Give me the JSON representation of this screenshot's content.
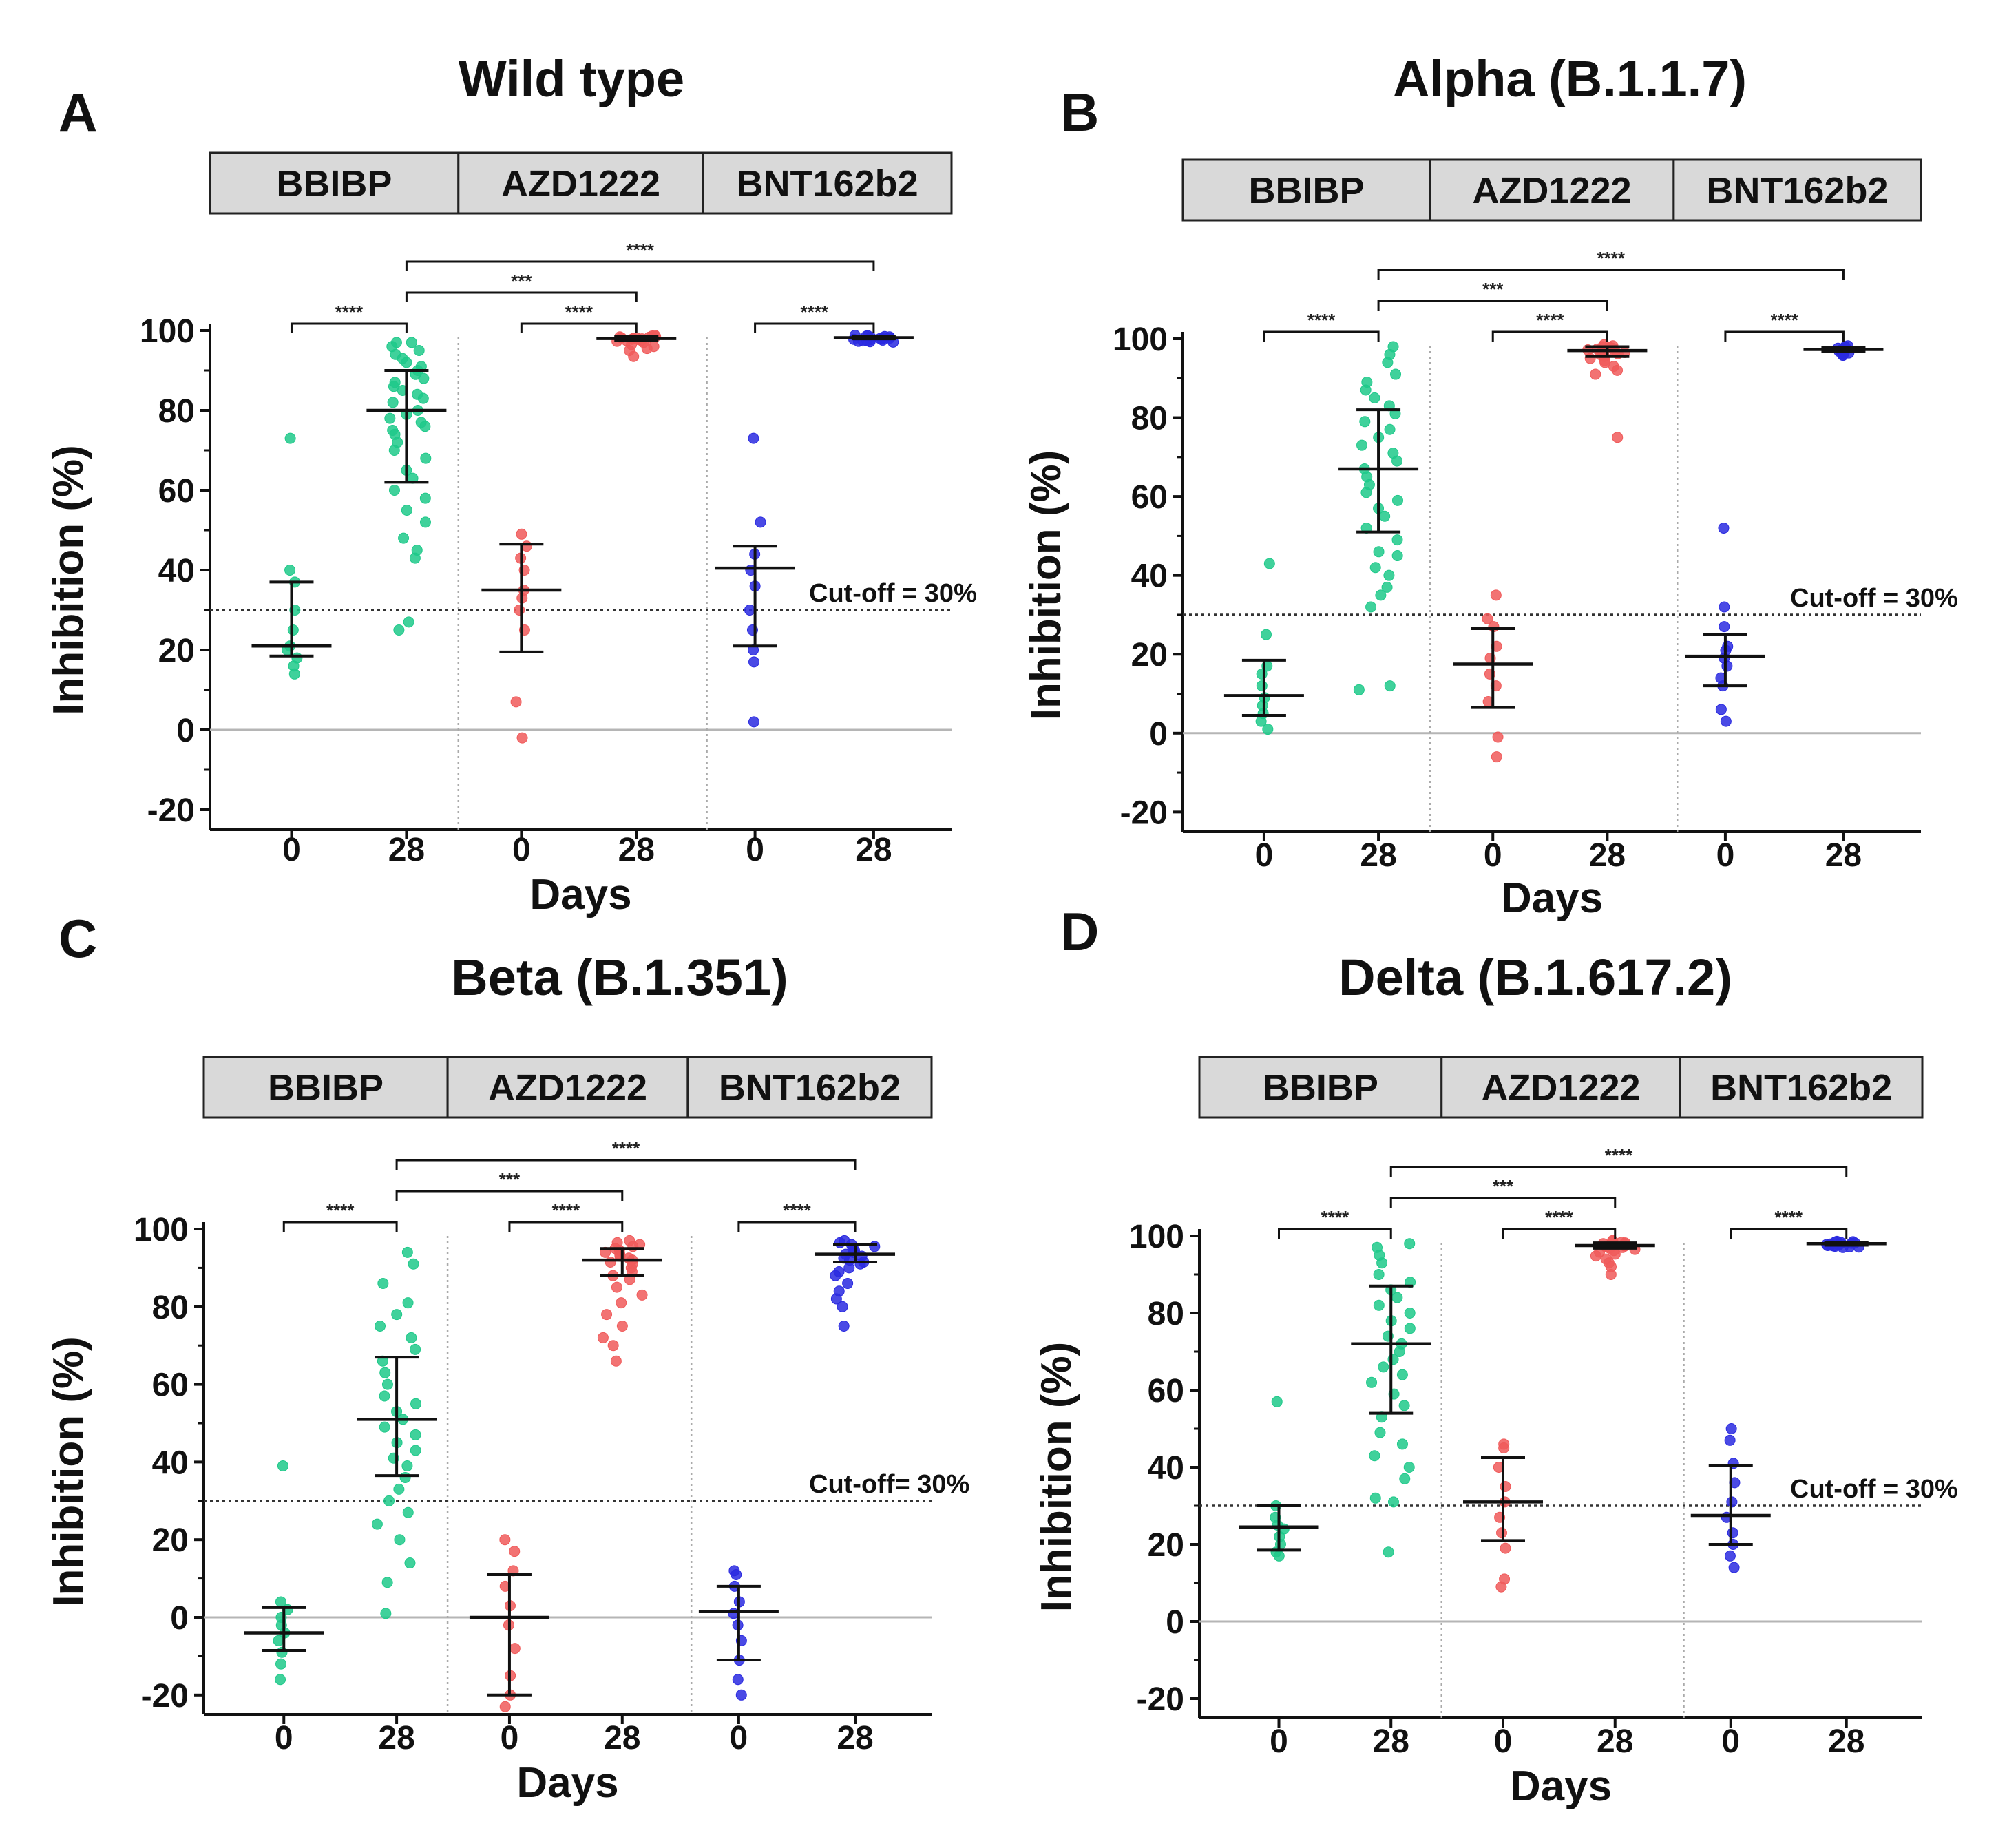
{
  "figure": {
    "x_axis_title": "Days",
    "y_axis_title": "Inhibition (%)",
    "vaccines": [
      "BBIBP",
      "AZD1222",
      "BNT162b2"
    ]
  },
  "colors": {
    "BBIBP": "#1fc98a",
    "AZD1222": "#f05a5a",
    "BNT162b2": "#2a2ae0"
  },
  "chart_data": [
    {
      "type": "scatter",
      "panel": "A",
      "title": "Wild type",
      "xlabel": "Days",
      "ylabel": "Inhibition (%)",
      "ylim": [
        -25,
        100
      ],
      "yticks": [
        -20,
        0,
        20,
        40,
        60,
        80,
        100
      ],
      "categories": [
        "0",
        "28",
        "0",
        "28",
        "0",
        "28"
      ],
      "cutoff": {
        "value": 30,
        "label": "Cut-off = 30%"
      },
      "groups": [
        {
          "vaccine": "BBIBP",
          "day": "0",
          "median": 21,
          "q1": 18.5,
          "q3": 37,
          "points": [
            73,
            40,
            37,
            30,
            25,
            21,
            20,
            18,
            16,
            14
          ]
        },
        {
          "vaccine": "BBIBP",
          "day": "28",
          "median": 80,
          "q1": 62,
          "q3": 90,
          "points": [
            97,
            97,
            96,
            95,
            94,
            93,
            92,
            91,
            90,
            89,
            88,
            87,
            86,
            85,
            84,
            83,
            82,
            80,
            79,
            78,
            77,
            76,
            75,
            74,
            72,
            70,
            68,
            65,
            63,
            60,
            58,
            55,
            52,
            48,
            45,
            43,
            27,
            25
          ]
        },
        {
          "vaccine": "AZD1222",
          "day": "0",
          "median": 35,
          "q1": 19.5,
          "q3": 46.5,
          "points": [
            49,
            46,
            43,
            40,
            35,
            33,
            30,
            25,
            7,
            -2
          ]
        },
        {
          "vaccine": "AZD1222",
          "day": "28",
          "median": 98,
          "q1": 97.5,
          "q3": 98.5,
          "points": [
            98.8,
            98.6,
            98.5,
            98.4,
            98.3,
            98.2,
            98.1,
            98,
            97.9,
            97.8,
            97.7,
            97.6,
            97.5,
            97.3,
            97,
            96.5,
            96,
            95.5,
            95,
            93.5
          ]
        },
        {
          "vaccine": "BNT162b2",
          "day": "0",
          "median": 40.5,
          "q1": 21,
          "q3": 46,
          "points": [
            73,
            52,
            44,
            40,
            36,
            30,
            25,
            20,
            17,
            2
          ]
        },
        {
          "vaccine": "BNT162b2",
          "day": "28",
          "median": 98.2,
          "q1": 97.9,
          "q3": 98.6,
          "points": [
            98.8,
            98.7,
            98.6,
            98.5,
            98.4,
            98.3,
            98.2,
            98.1,
            98,
            97.9,
            97.8,
            97.7,
            97.6,
            97.5,
            97.4,
            97.3,
            97.2,
            97.1
          ]
        }
      ],
      "comparisons": [
        {
          "from": 0,
          "to": 1,
          "level": 1,
          "label": "****"
        },
        {
          "from": 2,
          "to": 3,
          "level": 1,
          "label": "****"
        },
        {
          "from": 4,
          "to": 5,
          "level": 1,
          "label": "****"
        },
        {
          "from": 1,
          "to": 3,
          "level": 2,
          "label": "***"
        },
        {
          "from": 1,
          "to": 5,
          "level": 3,
          "label": "****"
        }
      ]
    },
    {
      "type": "scatter",
      "panel": "B",
      "title": "Alpha (B.1.1.7)",
      "xlabel": "Days",
      "ylabel": "Inhibition (%)",
      "ylim": [
        -25,
        100
      ],
      "yticks": [
        -20,
        0,
        20,
        40,
        60,
        80,
        100
      ],
      "categories": [
        "0",
        "28",
        "0",
        "28",
        "0",
        "28"
      ],
      "cutoff": {
        "value": 30,
        "label": "Cut-off = 30%"
      },
      "groups": [
        {
          "vaccine": "BBIBP",
          "day": "0",
          "median": 9.5,
          "q1": 4.5,
          "q3": 18.5,
          "points": [
            43,
            25,
            17,
            15,
            12,
            9,
            7,
            5,
            3,
            1
          ]
        },
        {
          "vaccine": "BBIBP",
          "day": "28",
          "median": 67,
          "q1": 51,
          "q3": 82,
          "points": [
            98,
            96,
            94,
            91,
            89,
            87,
            85,
            83,
            81,
            79,
            77,
            75,
            73,
            71,
            69,
            67,
            65,
            63,
            61,
            59,
            57,
            55,
            52,
            49,
            46,
            45,
            42,
            40,
            37,
            35,
            32,
            12,
            11
          ]
        },
        {
          "vaccine": "AZD1222",
          "day": "0",
          "median": 17.5,
          "q1": 6.5,
          "q3": 26.5,
          "points": [
            35,
            29,
            27,
            22,
            19,
            15,
            12,
            8,
            -1,
            -6
          ]
        },
        {
          "vaccine": "AZD1222",
          "day": "28",
          "median": 97,
          "q1": 95.5,
          "q3": 98,
          "points": [
            98.5,
            98.2,
            98,
            97.8,
            97.6,
            97.4,
            97.2,
            97,
            96.8,
            96.5,
            96.2,
            96,
            95.5,
            95,
            94.5,
            94,
            93,
            92,
            91,
            75
          ]
        },
        {
          "vaccine": "BNT162b2",
          "day": "0",
          "median": 19.5,
          "q1": 12,
          "q3": 25,
          "points": [
            52,
            32,
            27,
            22,
            21,
            19,
            17,
            14,
            12,
            6,
            3
          ]
        },
        {
          "vaccine": "BNT162b2",
          "day": "28",
          "median": 97.3,
          "q1": 96.8,
          "q3": 97.8,
          "points": [
            98.2,
            98,
            97.8,
            97.6,
            97.4,
            97.3,
            97.2,
            97,
            96.8,
            96.6,
            96.4,
            96.2,
            96,
            95.8
          ]
        }
      ],
      "comparisons": [
        {
          "from": 0,
          "to": 1,
          "level": 1,
          "label": "****"
        },
        {
          "from": 2,
          "to": 3,
          "level": 1,
          "label": "****"
        },
        {
          "from": 4,
          "to": 5,
          "level": 1,
          "label": "****"
        },
        {
          "from": 1,
          "to": 3,
          "level": 2,
          "label": "***"
        },
        {
          "from": 1,
          "to": 5,
          "level": 3,
          "label": "****"
        }
      ]
    },
    {
      "type": "scatter",
      "panel": "C",
      "title": "Beta (B.1.351)",
      "xlabel": "Days",
      "ylabel": "Inhibition (%)",
      "ylim": [
        -25,
        100
      ],
      "yticks": [
        -20,
        0,
        20,
        40,
        60,
        80,
        100
      ],
      "categories": [
        "0",
        "28",
        "0",
        "28",
        "0",
        "28"
      ],
      "cutoff": {
        "value": 30,
        "label": "Cut-off= 30%"
      },
      "groups": [
        {
          "vaccine": "BBIBP",
          "day": "0",
          "median": -4,
          "q1": -8.5,
          "q3": 2.5,
          "points": [
            39,
            4,
            2,
            0,
            -2,
            -4,
            -6,
            -9,
            -12,
            -16
          ]
        },
        {
          "vaccine": "BBIBP",
          "day": "28",
          "median": 51,
          "q1": 36.5,
          "q3": 67,
          "points": [
            94,
            91,
            86,
            81,
            78,
            75,
            72,
            69,
            66,
            63,
            60,
            57,
            55,
            53,
            51,
            49,
            47,
            45,
            43,
            41,
            39,
            36,
            33,
            30,
            27,
            24,
            20,
            14,
            9,
            1
          ]
        },
        {
          "vaccine": "AZD1222",
          "day": "0",
          "median": 0,
          "q1": -20,
          "q3": 11,
          "points": [
            20,
            17,
            12,
            8,
            3,
            -2,
            -8,
            -15,
            -20,
            -23
          ]
        },
        {
          "vaccine": "AZD1222",
          "day": "28",
          "median": 92,
          "q1": 88,
          "q3": 95,
          "points": [
            97,
            96.5,
            96,
            95.5,
            95,
            94.5,
            94,
            93.5,
            93,
            92.5,
            92,
            91.5,
            91,
            90,
            89,
            88,
            87,
            85,
            83,
            81,
            78,
            75,
            72,
            70,
            66
          ]
        },
        {
          "vaccine": "BNT162b2",
          "day": "0",
          "median": 1.5,
          "q1": -11,
          "q3": 8,
          "points": [
            12,
            11,
            8,
            4,
            1,
            -2,
            -6,
            -11,
            -16,
            -20
          ]
        },
        {
          "vaccine": "BNT162b2",
          "day": "28",
          "median": 93.5,
          "q1": 91.5,
          "q3": 96,
          "points": [
            97,
            96.5,
            96,
            95.5,
            95,
            94.5,
            94,
            93.5,
            93,
            92.5,
            92,
            91.5,
            91,
            90,
            89,
            88,
            86,
            84,
            82,
            80,
            75
          ]
        }
      ],
      "comparisons": [
        {
          "from": 0,
          "to": 1,
          "level": 1,
          "label": "****"
        },
        {
          "from": 2,
          "to": 3,
          "level": 1,
          "label": "****"
        },
        {
          "from": 4,
          "to": 5,
          "level": 1,
          "label": "****"
        },
        {
          "from": 1,
          "to": 3,
          "level": 2,
          "label": "***"
        },
        {
          "from": 1,
          "to": 5,
          "level": 3,
          "label": "****"
        }
      ]
    },
    {
      "type": "scatter",
      "panel": "D",
      "title": "Delta (B.1.617.2)",
      "xlabel": "Days",
      "ylabel": "Inhibition (%)",
      "ylim": [
        -25,
        100
      ],
      "yticks": [
        -20,
        0,
        20,
        40,
        60,
        80,
        100
      ],
      "categories": [
        "0",
        "28",
        "0",
        "28",
        "0",
        "28"
      ],
      "cutoff": {
        "value": 30,
        "label": "Cut-off = 30%"
      },
      "groups": [
        {
          "vaccine": "BBIBP",
          "day": "0",
          "median": 24.5,
          "q1": 18.5,
          "q3": 30,
          "points": [
            57,
            30,
            27,
            25,
            24,
            22,
            20,
            18,
            17
          ]
        },
        {
          "vaccine": "BBIBP",
          "day": "28",
          "median": 72,
          "q1": 54,
          "q3": 87,
          "points": [
            98,
            97,
            95,
            93,
            90,
            88,
            86,
            84,
            82,
            80,
            78,
            76,
            74,
            72,
            70,
            68,
            66,
            64,
            62,
            59,
            56,
            53,
            49,
            46,
            43,
            40,
            37,
            32,
            31,
            18
          ]
        },
        {
          "vaccine": "AZD1222",
          "day": "0",
          "median": 31,
          "q1": 21,
          "q3": 42.5,
          "points": [
            46,
            45,
            40,
            35,
            31,
            27,
            23,
            19,
            11,
            9
          ]
        },
        {
          "vaccine": "AZD1222",
          "day": "28",
          "median": 97.5,
          "q1": 96.8,
          "q3": 98.2,
          "points": [
            98.8,
            98.6,
            98.4,
            98.2,
            98,
            97.8,
            97.6,
            97.4,
            97.2,
            97,
            96.8,
            96.5,
            96.2,
            95.8,
            95.3,
            94.8,
            94,
            93,
            92,
            90
          ]
        },
        {
          "vaccine": "BNT162b2",
          "day": "0",
          "median": 27.5,
          "q1": 20,
          "q3": 40.5,
          "points": [
            50,
            47,
            41,
            36,
            31,
            27,
            23,
            20,
            17,
            14
          ]
        },
        {
          "vaccine": "BNT162b2",
          "day": "28",
          "median": 98,
          "q1": 97.6,
          "q3": 98.4,
          "points": [
            98.6,
            98.5,
            98.4,
            98.3,
            98.2,
            98.1,
            98,
            97.9,
            97.8,
            97.7,
            97.6,
            97.5,
            97.4,
            97.3,
            97.2,
            97.1,
            97
          ]
        }
      ],
      "comparisons": [
        {
          "from": 0,
          "to": 1,
          "level": 1,
          "label": "****"
        },
        {
          "from": 2,
          "to": 3,
          "level": 1,
          "label": "****"
        },
        {
          "from": 4,
          "to": 5,
          "level": 1,
          "label": "****"
        },
        {
          "from": 1,
          "to": 3,
          "level": 2,
          "label": "***"
        },
        {
          "from": 1,
          "to": 5,
          "level": 3,
          "label": "****"
        }
      ]
    }
  ]
}
